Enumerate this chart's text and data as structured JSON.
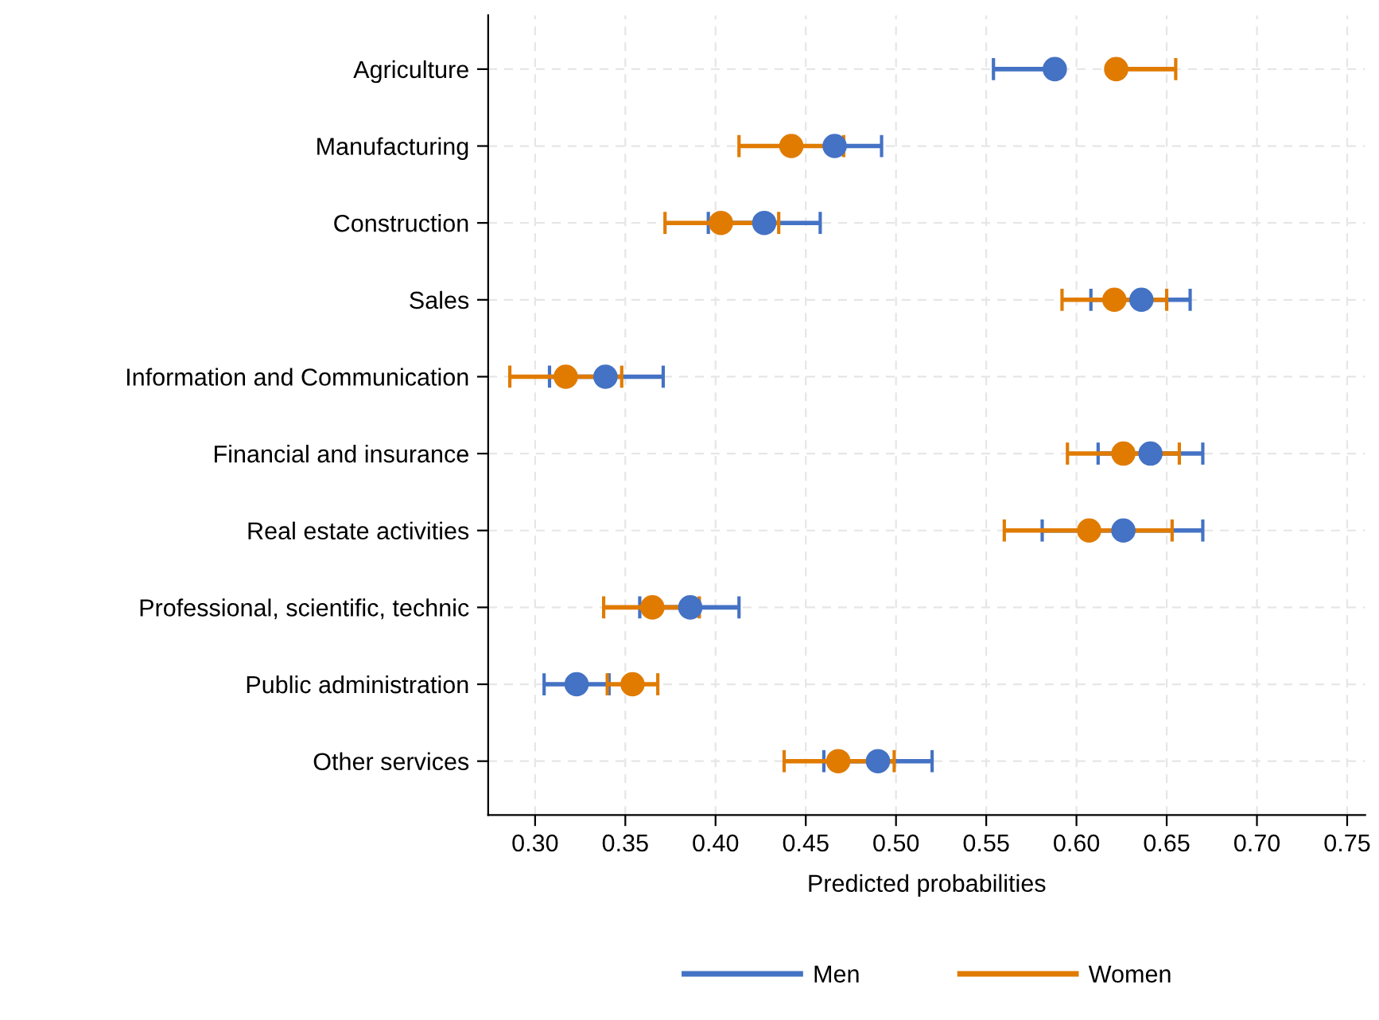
{
  "chart_data": {
    "type": "scatter",
    "orientation": "horizontal",
    "xlabel": "Predicted probabilities",
    "categories": [
      "Agriculture",
      "Manufacturing",
      "Construction",
      "Sales",
      "Information and Communication",
      "Financial and insurance",
      "Real estate activities",
      "Professional, scientific, technic",
      "Public administration",
      "Other services"
    ],
    "series": [
      {
        "name": "Men",
        "color": "#4472c4",
        "values": [
          0.588,
          0.466,
          0.427,
          0.636,
          0.339,
          0.641,
          0.626,
          0.386,
          0.323,
          0.49
        ],
        "errors": [
          [
            0.554,
            0.588
          ],
          [
            0.466,
            0.492
          ],
          [
            0.396,
            0.458
          ],
          [
            0.608,
            0.663
          ],
          [
            0.308,
            0.371
          ],
          [
            0.612,
            0.67
          ],
          [
            0.581,
            0.67
          ],
          [
            0.358,
            0.413
          ],
          [
            0.305,
            0.341
          ],
          [
            0.46,
            0.52
          ]
        ]
      },
      {
        "name": "Women",
        "color": "#e07b00",
        "values": [
          0.622,
          0.442,
          0.403,
          0.621,
          0.317,
          0.626,
          0.607,
          0.365,
          0.354,
          0.468
        ],
        "errors": [
          [
            0.622,
            0.655
          ],
          [
            0.413,
            0.471
          ],
          [
            0.372,
            0.435
          ],
          [
            0.592,
            0.65
          ],
          [
            0.286,
            0.348
          ],
          [
            0.595,
            0.657
          ],
          [
            0.56,
            0.653
          ],
          [
            0.338,
            0.391
          ],
          [
            0.34,
            0.368
          ],
          [
            0.438,
            0.499
          ]
        ]
      }
    ],
    "xlim": [
      0.274,
      0.76
    ],
    "xticks": [
      {
        "value": 0.3,
        "label": "0.30"
      },
      {
        "value": 0.35,
        "label": "0.35"
      },
      {
        "value": 0.4,
        "label": "0.40"
      },
      {
        "value": 0.45,
        "label": "0.45"
      },
      {
        "value": 0.5,
        "label": "0.50"
      },
      {
        "value": 0.55,
        "label": "0.55"
      },
      {
        "value": 0.6,
        "label": "0.60"
      },
      {
        "value": 0.65,
        "label": "0.65"
      },
      {
        "value": 0.7,
        "label": "0.70"
      },
      {
        "value": 0.75,
        "label": "0.75"
      }
    ],
    "grid": true,
    "marker": "circle",
    "legend": "bottom"
  }
}
